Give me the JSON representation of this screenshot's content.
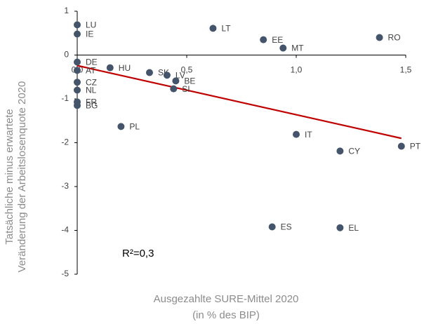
{
  "chart_data": {
    "type": "scatter",
    "xlabel": [
      "Ausgezahlte SURE-Mittel 2020",
      "(in % des BIP)"
    ],
    "ylabel": [
      "Tatsächliche minus erwartete",
      "Veränderung der Arbeitslosenquote 2020"
    ],
    "annotation": "R²=0,3",
    "xlim": [
      0,
      1.5
    ],
    "ylim": [
      -5,
      1
    ],
    "xticks": [
      {
        "value": 0,
        "label": "0,0"
      },
      {
        "value": 0.5,
        "label": "0,5"
      },
      {
        "value": 1,
        "label": "1,0"
      },
      {
        "value": 1.5,
        "label": "1,5"
      }
    ],
    "yticks": [
      1,
      0,
      -1,
      -2,
      -3,
      -4,
      -5
    ],
    "color": "#44546a",
    "trend_color": "#c00000",
    "points": [
      {
        "label": "LU",
        "x": 0,
        "y": 0.69
      },
      {
        "label": "IE",
        "x": 0,
        "y": 0.48
      },
      {
        "label": "DE",
        "x": 0,
        "y": -0.16
      },
      {
        "label": "AT",
        "x": 0,
        "y": -0.35
      },
      {
        "label": "CZ",
        "x": 0,
        "y": -0.62
      },
      {
        "label": "NL",
        "x": 0,
        "y": -0.8
      },
      {
        "label": "FR",
        "x": 0,
        "y": -1.07
      },
      {
        "label": "BG",
        "x": 0,
        "y": -1.15
      },
      {
        "label": "HU",
        "x": 0.15,
        "y": -0.29
      },
      {
        "label": "SK",
        "x": 0.33,
        "y": -0.4
      },
      {
        "label": "LV",
        "x": 0.41,
        "y": -0.46
      },
      {
        "label": "BE",
        "x": 0.45,
        "y": -0.59
      },
      {
        "label": "SI",
        "x": 0.44,
        "y": -0.77
      },
      {
        "label": "PL",
        "x": 0.2,
        "y": -1.63
      },
      {
        "label": "LT",
        "x": 0.62,
        "y": 0.61
      },
      {
        "label": "EE",
        "x": 0.85,
        "y": 0.35
      },
      {
        "label": "MT",
        "x": 0.94,
        "y": 0.16
      },
      {
        "label": "RO",
        "x": 1.38,
        "y": 0.4
      },
      {
        "label": "IT",
        "x": 1.0,
        "y": -1.81
      },
      {
        "label": "CY",
        "x": 1.2,
        "y": -2.19
      },
      {
        "label": "PT",
        "x": 1.48,
        "y": -2.08
      },
      {
        "label": "ES",
        "x": 0.89,
        "y": -3.92
      },
      {
        "label": "EL",
        "x": 1.2,
        "y": -3.94
      }
    ],
    "trendline": {
      "x": [
        0,
        1.48
      ],
      "y": [
        -0.24,
        -1.9
      ]
    }
  }
}
